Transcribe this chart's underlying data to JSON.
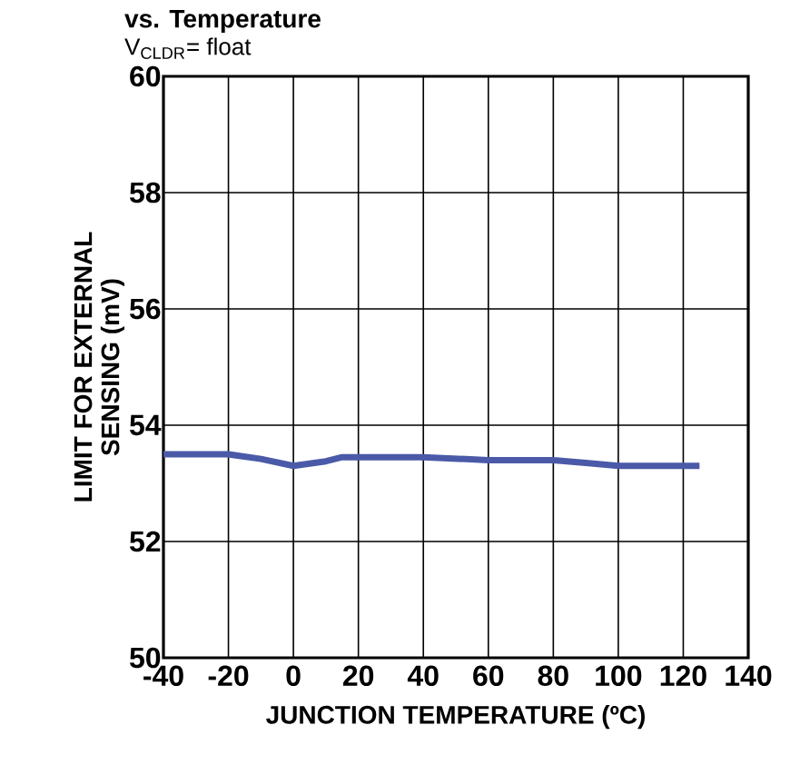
{
  "chart_data": {
    "type": "line",
    "title": "vs. Temperature",
    "subtitle": "V$_{CLDR}$= float",
    "xlabel": "JUNCTION TEMPERATURE (ºC)",
    "ylabel": "LIMIT FOR EXTERNAL\nSENSING (mV)",
    "x": [
      -40,
      -20,
      -10,
      0,
      10,
      15,
      20,
      40,
      60,
      80,
      90,
      100,
      125
    ],
    "series": [
      {
        "color": "#4a5aa8",
        "values": [
          53.5,
          53.5,
          53.42,
          53.3,
          53.38,
          53.45,
          53.45,
          53.45,
          53.4,
          53.4,
          53.35,
          53.3,
          53.3
        ]
      }
    ],
    "xlim": [
      -40,
      140
    ],
    "xticks": [
      -40,
      -20,
      0,
      20,
      40,
      60,
      80,
      100,
      120,
      140
    ],
    "ylim": [
      50,
      60
    ],
    "yticks": [
      50,
      52,
      54,
      56,
      58,
      60
    ],
    "grid": true,
    "marker": "none",
    "line_style": "solid"
  }
}
